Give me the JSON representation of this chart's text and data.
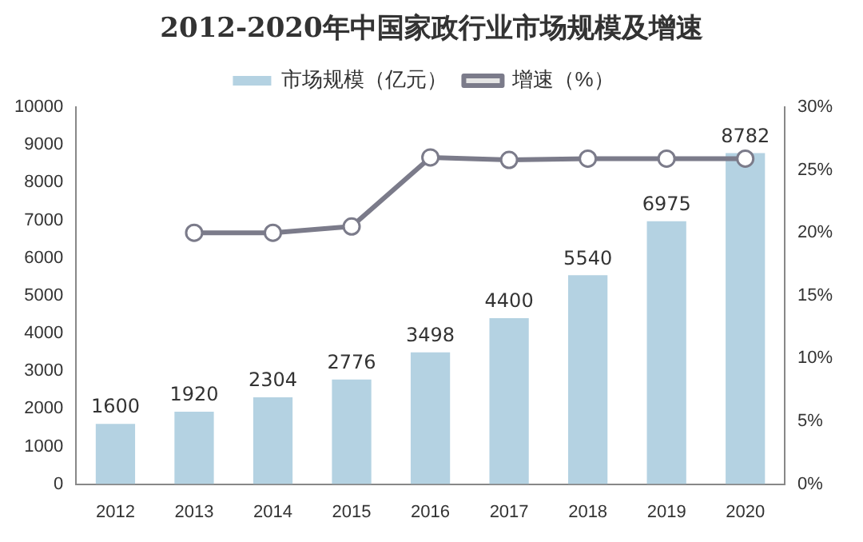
{
  "chart_data": {
    "type": "bar",
    "title": "2012-2020年中国家政行业市场规模及增速",
    "categories": [
      "2012",
      "2013",
      "2014",
      "2015",
      "2016",
      "2017",
      "2018",
      "2019",
      "2020"
    ],
    "series": [
      {
        "name": "市场规模（亿元）",
        "color": "#b4d2e2",
        "values": [
          1600,
          1920,
          2304,
          2776,
          3498,
          4400,
          5540,
          6975,
          8782
        ],
        "value_labels": [
          "1600",
          "1920",
          "2304",
          "2776",
          "3498",
          "4400",
          "5540",
          "6975",
          "8782"
        ]
      },
      {
        "name": "增速（%）",
        "type": "line",
        "axis": "y2",
        "color": "#7b7b8a",
        "values": [
          null,
          20,
          20,
          20.5,
          26,
          25.8,
          25.9,
          25.9,
          25.9
        ]
      }
    ],
    "ylim": [
      0,
      10000
    ],
    "yticks": [
      0,
      1000,
      2000,
      3000,
      4000,
      5000,
      6000,
      7000,
      8000,
      9000,
      10000
    ],
    "y2lim": [
      0,
      30
    ],
    "y2ticks": [
      {
        "value": 0,
        "label": "0%"
      },
      {
        "value": 5,
        "label": "5%"
      },
      {
        "value": 10,
        "label": "10%"
      },
      {
        "value": 15,
        "label": "15%"
      },
      {
        "value": 20,
        "label": "20%"
      },
      {
        "value": 25,
        "label": "25%"
      },
      {
        "value": 30,
        "label": "30%"
      }
    ],
    "marker": "circle",
    "line_style": "solid",
    "legend": "top",
    "grid": false
  }
}
